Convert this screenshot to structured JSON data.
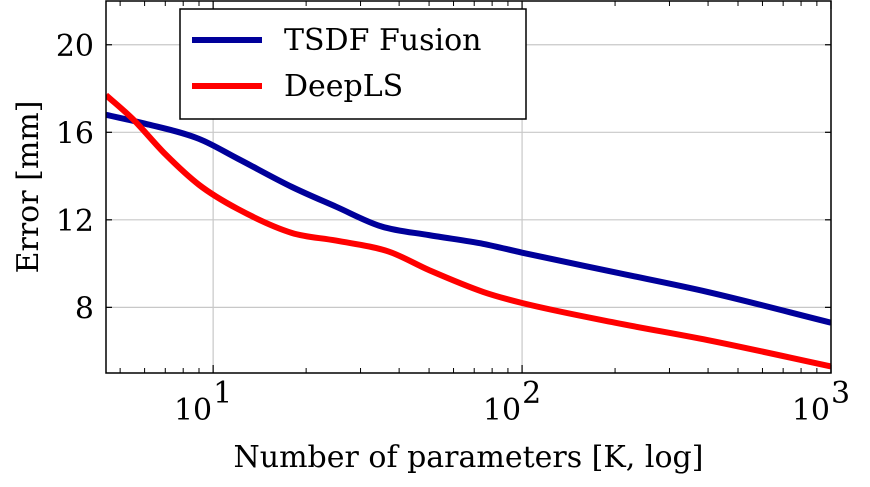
{
  "chart_data": {
    "type": "line",
    "xlabel": "Number of parameters [K, log]",
    "ylabel": "Error [mm]",
    "x_scale": "log",
    "xlim": [
      4.5,
      1000
    ],
    "ylim": [
      5.0,
      22.0
    ],
    "x_ticks": [
      {
        "value": 10,
        "base": "10",
        "exp": "1"
      },
      {
        "value": 100,
        "base": "10",
        "exp": "2"
      },
      {
        "value": 1000,
        "base": "10",
        "exp": "3"
      }
    ],
    "y_ticks": [
      8,
      12,
      16,
      20
    ],
    "grid": true,
    "legend_position": "top-left",
    "series": [
      {
        "name": "TSDF Fusion",
        "color": "#00009a",
        "points": [
          [
            4.5,
            16.8
          ],
          [
            6,
            16.4
          ],
          [
            9,
            15.7
          ],
          [
            12,
            14.8
          ],
          [
            18,
            13.5
          ],
          [
            25,
            12.6
          ],
          [
            35,
            11.7
          ],
          [
            50,
            11.3
          ],
          [
            75,
            10.9
          ],
          [
            100,
            10.5
          ],
          [
            200,
            9.6
          ],
          [
            400,
            8.7
          ],
          [
            1000,
            7.3
          ]
        ]
      },
      {
        "name": "DeepLS",
        "color": "#ff0000",
        "points": [
          [
            4.5,
            17.7
          ],
          [
            5.5,
            16.6
          ],
          [
            7,
            15.0
          ],
          [
            9,
            13.6
          ],
          [
            12,
            12.5
          ],
          [
            18,
            11.4
          ],
          [
            25,
            11.05
          ],
          [
            37,
            10.55
          ],
          [
            50,
            9.7
          ],
          [
            75,
            8.7
          ],
          [
            100,
            8.2
          ],
          [
            200,
            7.3
          ],
          [
            400,
            6.5
          ],
          [
            1000,
            5.3
          ]
        ]
      }
    ]
  }
}
